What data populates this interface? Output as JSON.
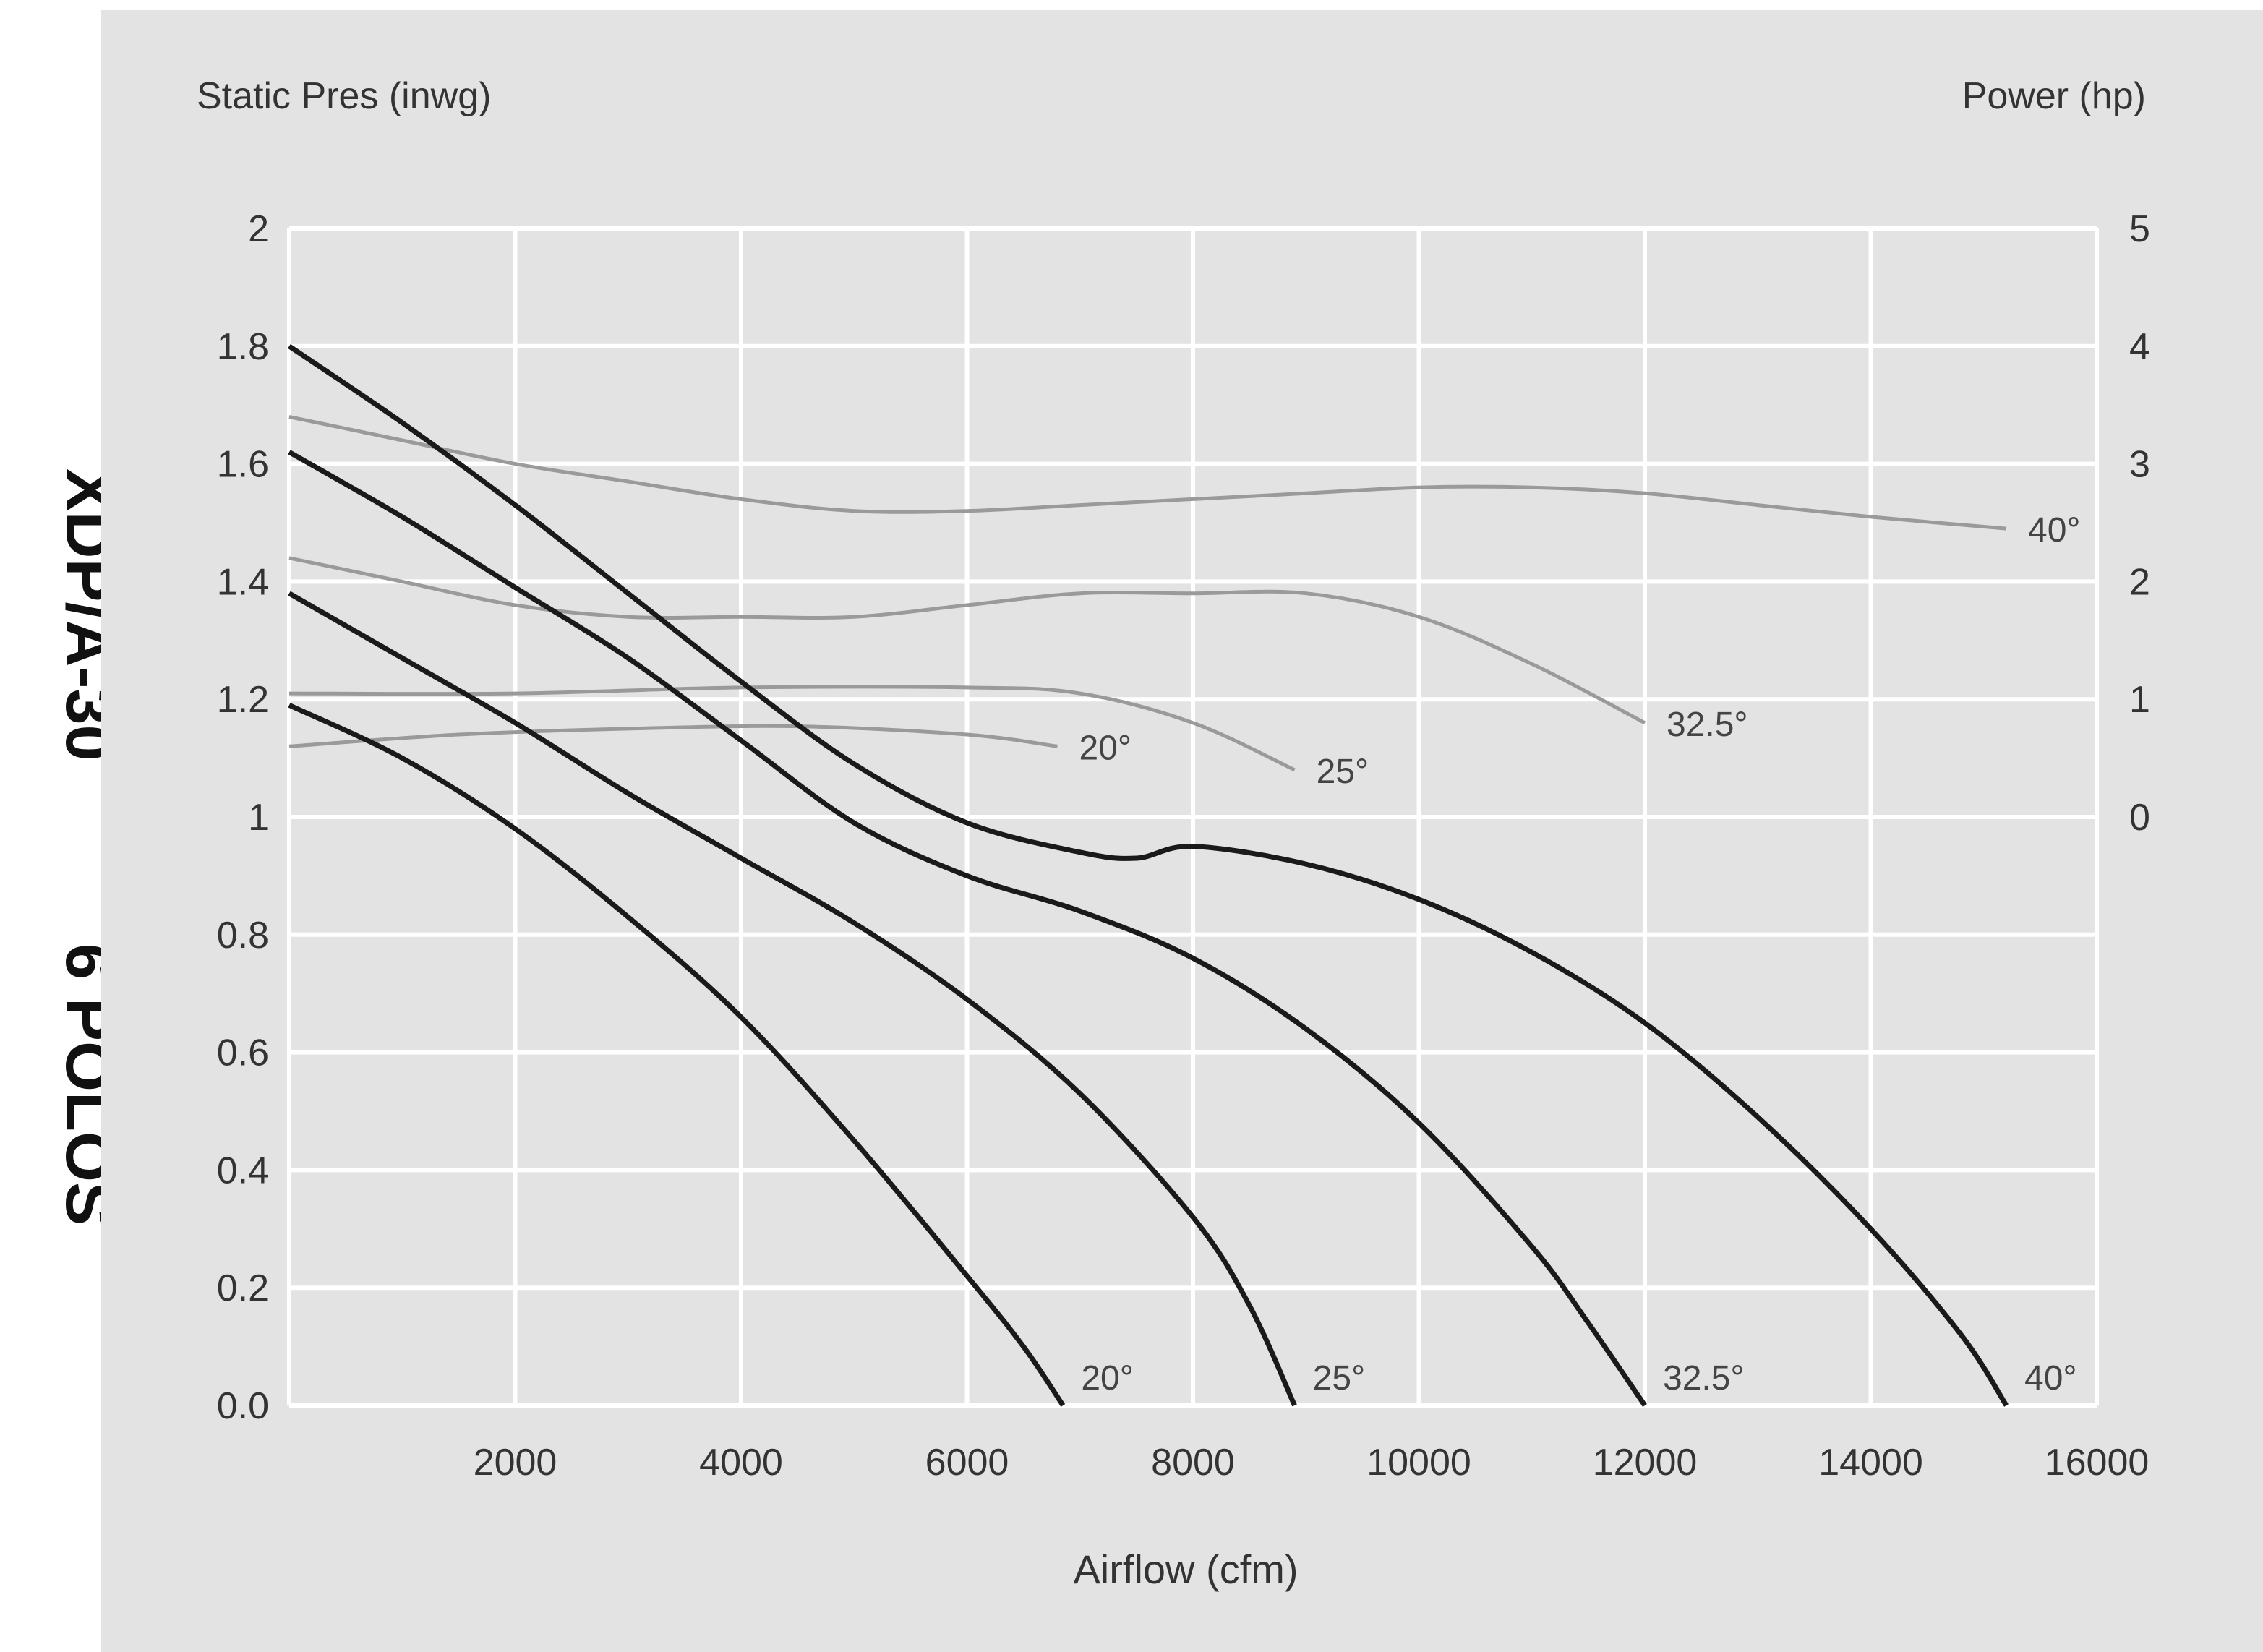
{
  "side_title": {
    "model": "XDP/A-30",
    "poles": "6 POLOS"
  },
  "chart_data": {
    "type": "line",
    "title": "",
    "xlabel": "Airflow (cfm)",
    "ylabel": "Static Pres (inwg)",
    "y2label": "Power (hp)",
    "xlim": [
      0,
      16000
    ],
    "ylim": [
      0,
      2
    ],
    "y2lim": [
      0,
      5
    ],
    "y2_axis_range": [
      -5,
      5
    ],
    "x_ticks": [
      "2000",
      "4000",
      "6000",
      "8000",
      "10000",
      "12000",
      "14000",
      "16000"
    ],
    "x_tick_values": [
      2000,
      4000,
      6000,
      8000,
      10000,
      12000,
      14000,
      16000
    ],
    "y_ticks": [
      "0.0",
      "0.2",
      "0.4",
      "0.6",
      "0.8",
      "1",
      "1.2",
      "1.4",
      "1.6",
      "1.8",
      "2"
    ],
    "y_tick_values": [
      0,
      0.2,
      0.4,
      0.6,
      0.8,
      1,
      1.2,
      1.4,
      1.6,
      1.8,
      2
    ],
    "y2_ticks": [
      "0",
      "1",
      "2",
      "3",
      "4",
      "5"
    ],
    "y2_tick_values": [
      0,
      1,
      2,
      3,
      4,
      5
    ],
    "grid": true,
    "legend": "none",
    "pressure_color": "#1a1a1a",
    "power_color": "#9a9a9a",
    "pressure_series": [
      {
        "name": "20°",
        "label": "20°",
        "x": [
          0,
          1000,
          2000,
          3000,
          4000,
          5000,
          6000,
          6500,
          6850
        ],
        "y": [
          1.19,
          1.1,
          0.98,
          0.83,
          0.66,
          0.45,
          0.22,
          0.1,
          0.0
        ]
      },
      {
        "name": "25°",
        "label": "25°",
        "x": [
          0,
          1000,
          2000,
          3000,
          4000,
          5000,
          6000,
          7000,
          8000,
          8500,
          8900
        ],
        "y": [
          1.38,
          1.27,
          1.16,
          1.04,
          0.93,
          0.82,
          0.69,
          0.53,
          0.32,
          0.17,
          0.0
        ]
      },
      {
        "name": "32.5°",
        "label": "32.5°",
        "x": [
          0,
          1000,
          2000,
          3000,
          4000,
          5000,
          6000,
          7000,
          8000,
          9000,
          10000,
          11000,
          11500,
          12000
        ],
        "y": [
          1.62,
          1.51,
          1.39,
          1.27,
          1.13,
          0.99,
          0.9,
          0.84,
          0.76,
          0.64,
          0.48,
          0.27,
          0.14,
          0.0
        ]
      },
      {
        "name": "40°",
        "label": "40°",
        "x": [
          0,
          1000,
          2000,
          3000,
          4000,
          5000,
          6000,
          7000,
          7500,
          8000,
          9000,
          10000,
          11000,
          12000,
          13000,
          14000,
          14800,
          15200
        ],
        "y": [
          1.8,
          1.67,
          1.53,
          1.38,
          1.23,
          1.09,
          0.99,
          0.94,
          0.93,
          0.95,
          0.92,
          0.86,
          0.77,
          0.65,
          0.49,
          0.3,
          0.12,
          0.0
        ]
      }
    ],
    "power_series": [
      {
        "name": "20°",
        "label": "20°",
        "x": [
          0,
          1500,
          3000,
          4500,
          6000,
          6800
        ],
        "y": [
          0.6,
          0.7,
          0.75,
          0.77,
          0.7,
          0.6
        ]
      },
      {
        "name": "25°",
        "label": "25°",
        "x": [
          0,
          2000,
          4000,
          6000,
          7000,
          8000,
          8900
        ],
        "y": [
          1.05,
          1.05,
          1.1,
          1.1,
          1.05,
          0.8,
          0.4
        ]
      },
      {
        "name": "32.5°",
        "label": "32.5°",
        "x": [
          0,
          1000,
          2000,
          3000,
          4000,
          5000,
          6000,
          7000,
          8000,
          9000,
          10000,
          11000,
          12000
        ],
        "y": [
          2.2,
          2.0,
          1.8,
          1.7,
          1.7,
          1.7,
          1.8,
          1.9,
          1.9,
          1.9,
          1.7,
          1.3,
          0.8
        ]
      },
      {
        "name": "40°",
        "label": "40°",
        "x": [
          0,
          1000,
          2000,
          3000,
          4000,
          5000,
          6000,
          7000,
          8000,
          9000,
          10000,
          11000,
          12000,
          13000,
          14000,
          15200
        ],
        "y": [
          3.4,
          3.2,
          3.0,
          2.85,
          2.7,
          2.6,
          2.6,
          2.65,
          2.7,
          2.75,
          2.8,
          2.8,
          2.75,
          2.65,
          2.55,
          2.45
        ]
      }
    ]
  }
}
